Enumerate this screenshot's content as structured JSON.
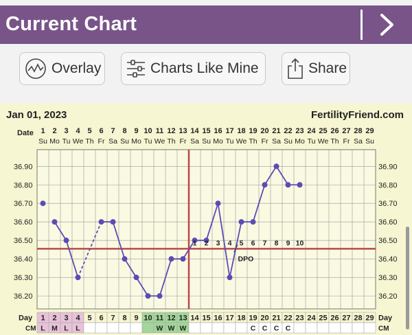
{
  "header": {
    "title": "Current Chart"
  },
  "toolbar": {
    "overlay_label": "Overlay",
    "charts_like_mine_label": "Charts Like Mine",
    "share_label": "Share"
  },
  "chart": {
    "start_date": "Jan 01, 2023",
    "site": "FertilityFriend.com",
    "date_row_label": "Date",
    "day_row_label": "Day",
    "cm_row_label": "CM",
    "dpo_label": "DPO",
    "days": [
      1,
      2,
      3,
      4,
      5,
      6,
      7,
      8,
      9,
      10,
      11,
      12,
      13,
      14,
      15,
      16,
      17,
      18,
      19,
      20,
      21,
      22,
      23,
      24,
      25,
      26,
      27,
      28,
      29
    ],
    "weekdays": [
      "Su",
      "Mo",
      "Tu",
      "We",
      "Th",
      "Fr",
      "Sa",
      "Su",
      "Mo",
      "Tu",
      "We",
      "Th",
      "Fr",
      "Sa",
      "Su",
      "Mo",
      "Tu",
      "We",
      "Th",
      "Fr",
      "Sa",
      "Su",
      "Mo",
      "Tu",
      "We",
      "Th",
      "Fr",
      "Sa",
      "Su"
    ],
    "cm": [
      "L",
      "M",
      "L",
      "L",
      "",
      "",
      "",
      "",
      "",
      "",
      "W",
      "W",
      "W",
      "",
      "",
      "",
      "",
      "",
      "C",
      "C",
      "C",
      "C",
      "",
      "",
      "",
      "",
      "",
      "",
      ""
    ],
    "fertile_days": [
      10,
      11,
      12,
      13
    ],
    "period_days": [
      1,
      2,
      3,
      4
    ],
    "dpo": [
      1,
      2,
      3,
      4,
      5,
      6,
      7,
      8,
      9,
      10
    ],
    "colors": {
      "line": "#5b4bb5",
      "coverline": "#b84a4a",
      "ovulation_line": "#b84a4a",
      "grid": "#999999",
      "period": "#e8c2d8",
      "fertile": "#a3d69a",
      "header_bg": "#785489",
      "chart_bg": "#f7f6d2"
    }
  },
  "chart_data": {
    "type": "line",
    "x": [
      1,
      2,
      3,
      4,
      5,
      6,
      7,
      8,
      9,
      10,
      11,
      12,
      13,
      14,
      15,
      16,
      17,
      18,
      19,
      20,
      21,
      22,
      23
    ],
    "y": [
      36.7,
      36.6,
      36.5,
      36.3,
      null,
      36.6,
      36.6,
      36.4,
      36.3,
      36.2,
      36.2,
      36.4,
      36.4,
      36.5,
      36.5,
      36.7,
      36.3,
      36.6,
      36.6,
      36.8,
      36.9,
      36.8,
      36.8
    ],
    "dashed_segments": [
      [
        4,
        6
      ]
    ],
    "y_ticks": [
      "36.20",
      "36.30",
      "36.40",
      "36.50",
      "36.60",
      "36.70",
      "36.80",
      "36.90"
    ],
    "ylim": [
      36.13,
      36.99
    ],
    "coverline": 36.455,
    "ovulation_day": 13,
    "grid": true
  }
}
